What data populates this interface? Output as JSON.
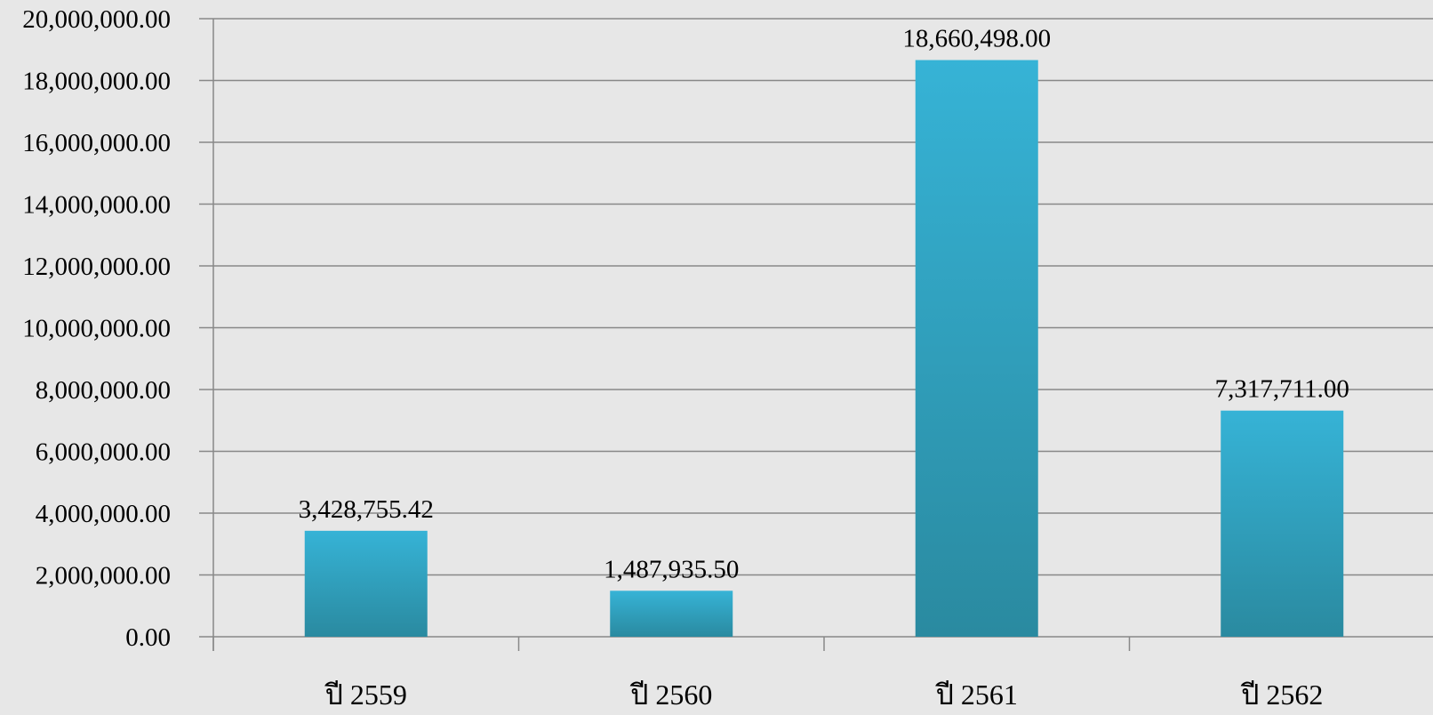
{
  "chart_data": {
    "type": "bar",
    "categories": [
      "ปี 2559",
      "ปี 2560",
      "ปี 2561",
      "ปี 2562"
    ],
    "values": [
      3428755.42,
      1487935.5,
      18660498.0,
      7317711.0
    ],
    "value_labels": [
      "3,428,755.42",
      "1,487,935.50",
      "18,660,498.00",
      "7,317,711.00"
    ],
    "ylim": [
      0,
      20000000
    ],
    "yticks": [
      0,
      2000000,
      4000000,
      6000000,
      8000000,
      10000000,
      12000000,
      14000000,
      16000000,
      18000000,
      20000000
    ],
    "ytick_labels": [
      "0.00",
      "2,000,000.00",
      "4,000,000.00",
      "6,000,000.00",
      "8,000,000.00",
      "10,000,000.00",
      "12,000,000.00",
      "14,000,000.00",
      "16,000,000.00",
      "18,000,000.00",
      "20,000,000.00"
    ],
    "grid": true,
    "legend": "none",
    "colors": {
      "bar_top": "#36b3d6",
      "bar_bottom": "#2a8aa0",
      "gridline": "#888888",
      "axis": "#888888",
      "background": "#e7e7e7"
    }
  }
}
